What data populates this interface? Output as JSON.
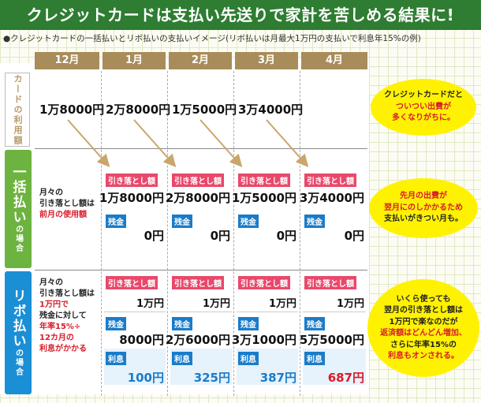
{
  "title": "クレジットカードは支払い先送りで家計を苦しめる結果に!",
  "subtitle": "●クレジットカードの一括払いとリボ払いの支払いイメージ(リボ払いは月最大1万円の支払いで利息年15%の例)",
  "months": [
    "12月",
    "1月",
    "2月",
    "3月",
    "4月"
  ],
  "rows": {
    "usage_label": "カードの利用額",
    "lump_label_main": "一括払い",
    "lump_label_sub": "の場合",
    "revo_label_main": "リボ払い",
    "revo_label_sub": "の場合"
  },
  "usage": [
    "1万8000円",
    "2万8000円",
    "1万5000円",
    "3万4000円"
  ],
  "lump": {
    "note_1": "月々の",
    "note_2": "引き落とし額は",
    "note_3": "前月の使用額",
    "debit_label": "引き落とし額",
    "balance_label": "残金",
    "debit": [
      "1万8000円",
      "2万8000円",
      "1万5000円",
      "3万4000円"
    ],
    "balance": [
      "0円",
      "0円",
      "0円",
      "0円"
    ]
  },
  "revo": {
    "note_1": "月々の",
    "note_2": "引き落とし額は",
    "note_3": "1万円で",
    "note_4": "残金に対して",
    "note_5": "年率15%÷",
    "note_6": "12カ月の",
    "note_7": "利息がかかる",
    "debit_label": "引き落とし額",
    "balance_label": "残金",
    "interest_label": "利息",
    "debit": [
      "1万円",
      "1万円",
      "1万円",
      "1万円"
    ],
    "balance": [
      "8000円",
      "2万6000円",
      "3万1000円",
      "5万5000円"
    ],
    "interest": [
      "100円",
      "325円",
      "387円",
      "687円"
    ]
  },
  "bubbles": {
    "b1_l1": "クレジットカードだと",
    "b1_l2": "ついつい出費が",
    "b1_l3": "多くなりがちに。",
    "b2_l1": "先月の出費が",
    "b2_l2": "翌月にのしかかるため",
    "b2_l3": "支払いがきつい月も。",
    "b3_l1": "いくら使っても",
    "b3_l2": "翌月の引き落とし額は",
    "b3_l3": "1万円で楽なのだが",
    "b3_l4": "返済額はどんどん増加、",
    "b3_l5": "さらに年率15%の",
    "b3_l6": "利息もオンされる。"
  },
  "colors": {
    "title_bg": "#2e7d32",
    "month_bg": "#a88c5a",
    "lump_label": "#6db33f",
    "revo_label": "#1a8fd6",
    "bubble": "#fff200",
    "accent_red": "#d81b2a",
    "arrow": "#c9a66b"
  }
}
